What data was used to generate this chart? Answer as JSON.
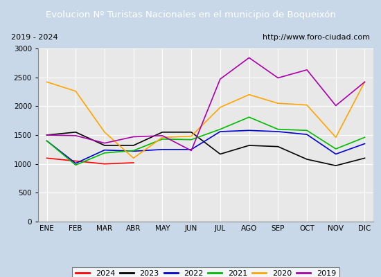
{
  "title": "Evolucion Nº Turistas Nacionales en el municipio de Boqueixón",
  "subtitle_left": "2019 - 2024",
  "subtitle_right": "http://www.foro-ciudad.com",
  "months": [
    "ENE",
    "FEB",
    "MAR",
    "ABR",
    "MAY",
    "JUN",
    "JUL",
    "AGO",
    "SEP",
    "OCT",
    "NOV",
    "DIC"
  ],
  "series": {
    "2024": [
      1100,
      1050,
      1000,
      1020,
      null,
      null,
      null,
      null,
      null,
      null,
      null,
      null
    ],
    "2023": [
      1500,
      1550,
      1320,
      1320,
      1550,
      1550,
      1170,
      1320,
      1300,
      1080,
      970,
      1100
    ],
    "2022": [
      1400,
      1010,
      1240,
      1220,
      1250,
      1250,
      1560,
      1580,
      1560,
      1510,
      1170,
      1350
    ],
    "2021": [
      1400,
      980,
      1190,
      1230,
      1430,
      1420,
      1600,
      1810,
      1600,
      1580,
      1260,
      1460
    ],
    "2020": [
      2420,
      2260,
      1550,
      1100,
      1460,
      1480,
      1980,
      2200,
      2050,
      2020,
      1460,
      2420
    ],
    "2019": [
      1500,
      1490,
      1360,
      1470,
      1490,
      1230,
      2470,
      2840,
      2490,
      2630,
      2010,
      2420
    ]
  },
  "colors": {
    "2024": "#ff0000",
    "2023": "#000000",
    "2022": "#0000cc",
    "2021": "#00bb00",
    "2020": "#ffa500",
    "2019": "#aa00aa"
  },
  "ylim": [
    0,
    3000
  ],
  "yticks": [
    0,
    500,
    1000,
    1500,
    2000,
    2500,
    3000
  ],
  "title_bg_color": "#4472c4",
  "title_text_color": "#ffffff",
  "plot_bg_color": "#e8e8e8",
  "outer_bg_color": "#c8d8e8",
  "grid_color": "#ffffff",
  "subtitle_box_color": "#d8d8d8",
  "subtitle_border_color": "#555555"
}
